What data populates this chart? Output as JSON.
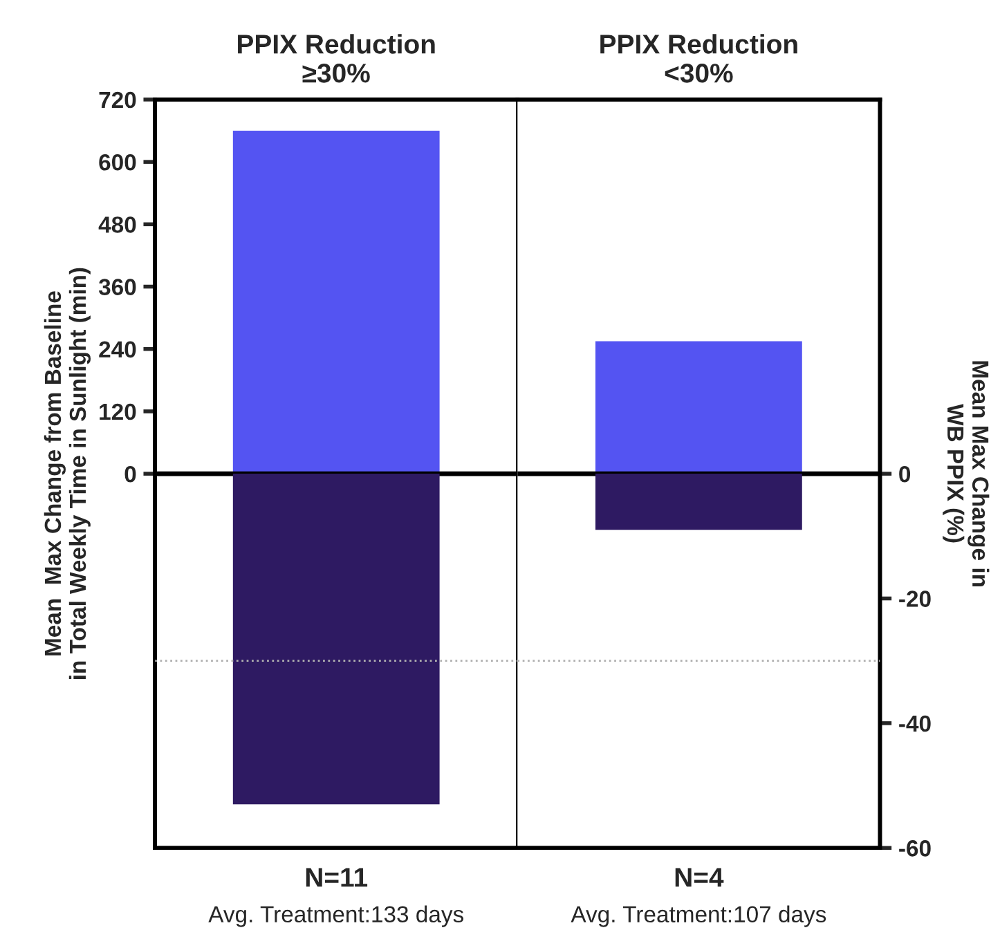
{
  "chart_data": [
    {
      "type": "bar",
      "stacked": true,
      "categories": [
        "PPIX Reduction\n≥30%"
      ],
      "series": [
        {
          "color": "#5454f2",
          "values": [
            660
          ],
          "axis": "y"
        },
        {
          "color": "#2e1a62",
          "values": [
            -53
          ],
          "axis": "y2"
        }
      ],
      "ylabel": "Mean  Max Change from Baseline\nin Total Weekly Time in Sunlight (min)",
      "ylim": [
        -720,
        720
      ],
      "yticks": [
        0,
        120,
        240,
        360,
        480,
        600,
        720
      ],
      "y2lim": [
        -60,
        60
      ],
      "ref_lines": [
        {
          "axis": "y",
          "value": 0,
          "color": "#000000",
          "line_style": "solid"
        },
        {
          "axis": "y2",
          "value": -30,
          "color": "#b0b0b0",
          "line_style": "dotted"
        }
      ],
      "annotations": [
        "N=11\nAvg. Treatment:133 days"
      ]
    },
    {
      "type": "bar",
      "stacked": true,
      "categories": [
        "PPIX Reduction\n<30%"
      ],
      "series": [
        {
          "color": "#5454f2",
          "values": [
            255
          ],
          "axis": "y"
        },
        {
          "color": "#2e1a62",
          "values": [
            -9
          ],
          "axis": "y2"
        }
      ],
      "y2label": "Mean Max Change in\nWB PPIX (%)",
      "ylim": [
        -720,
        720
      ],
      "y2lim": [
        -60,
        60
      ],
      "y2ticks": [
        0,
        -20,
        -40,
        -60
      ],
      "ref_lines": [
        {
          "axis": "y",
          "value": 0,
          "color": "#000000",
          "line_style": "solid"
        },
        {
          "axis": "y2",
          "value": -30,
          "color": "#b0b0b0",
          "line_style": "dotted"
        }
      ],
      "annotations": [
        "N=4\nAvg. Treatment:107 days"
      ]
    }
  ]
}
